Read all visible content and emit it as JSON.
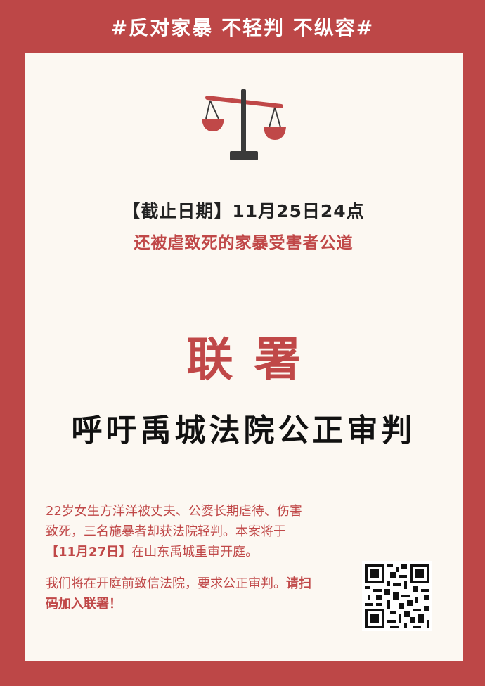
{
  "banner": {
    "text": "#反对家暴 不轻判 不纵容#"
  },
  "poster": {
    "deadline": "【截止日期】11月25日24点",
    "justice_line": "还被虐致死的家暴受害者公道",
    "sign_title": "联署",
    "headline": "呼吁禹城法院公正审判",
    "paragraph1": {
      "part1": "22岁女生方洋洋被丈夫、公婆长期虐待、伤害致死，三名施暴者却获法院轻判。本案将于",
      "date": "【11月27日】",
      "part2": "在山东禹城重审开庭。"
    },
    "paragraph2": {
      "part1": "我们将在开庭前致信法院，要求公正审判。",
      "cta": "请扫码加入联署！"
    }
  },
  "colors": {
    "brand_red": "#bd4747",
    "text_red": "#c04848",
    "card": "#fcf8f2",
    "dark": "#222222"
  },
  "icons": {
    "scale": "justice-scale-icon",
    "qr": "qr-code"
  }
}
